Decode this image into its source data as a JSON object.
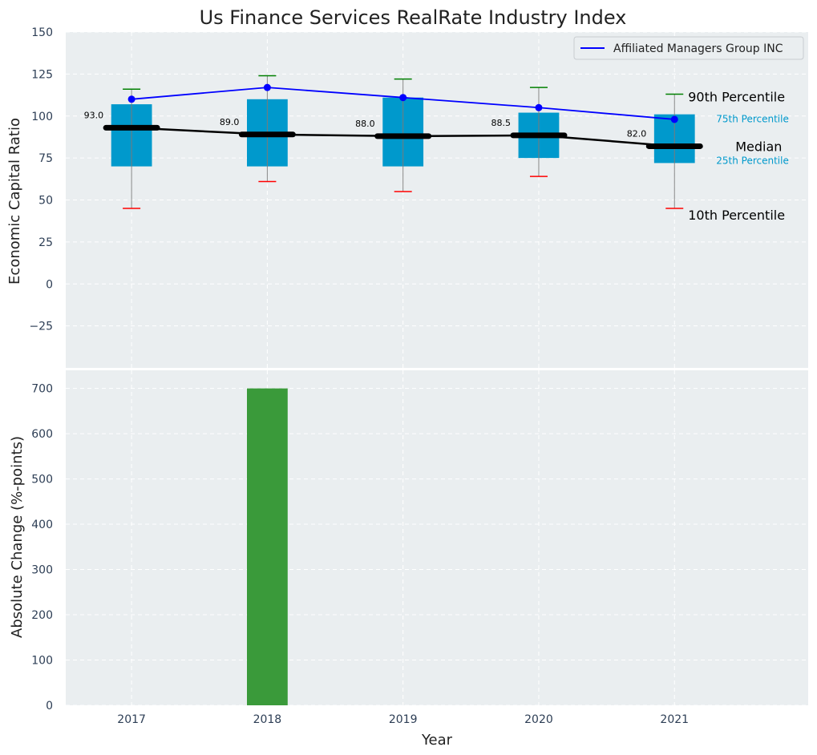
{
  "chart_data": [
    {
      "type": "box",
      "title": "Us Finance Services RealRate Industry Index",
      "ylabel": "Economic Capital Ratio",
      "ylim": [
        -50,
        150
      ],
      "yticks": [
        -25,
        0,
        25,
        50,
        75,
        100,
        125,
        150
      ],
      "ytick_labels": [
        "−25",
        "0",
        "25",
        "50",
        "75",
        "100",
        "125",
        "150"
      ],
      "grid": true,
      "legend_placement": "top-right",
      "categories": [
        "2017",
        "2018",
        "2019",
        "2020",
        "2021"
      ],
      "p10": [
        45,
        61,
        55,
        64,
        45
      ],
      "p25": [
        70,
        70,
        70,
        75,
        72
      ],
      "median": [
        93.0,
        89.0,
        88.0,
        88.5,
        82.0
      ],
      "median_labels": [
        "93.0",
        "89.0",
        "88.0",
        "88.5",
        "82.0"
      ],
      "p75": [
        107,
        110,
        111,
        102,
        101
      ],
      "p90": [
        116,
        124,
        122,
        117,
        113
      ],
      "series": [
        {
          "name": "Affiliated Managers Group INC",
          "values": [
            110,
            117,
            111,
            105,
            98
          ],
          "color": "#0000ff"
        }
      ],
      "annotations": {
        "p90": "90th Percentile",
        "p75": "75th Percentile",
        "median": "Median",
        "p25": "25th Percentile",
        "p10": "10th Percentile"
      },
      "colors": {
        "box": "#0099cc",
        "median": "#000000",
        "p90_cap": "#008000",
        "p10_cap": "#ff0000",
        "background": "#eaeef0"
      }
    },
    {
      "type": "bar",
      "ylabel": "Absolute Change (%-points)",
      "xlabel": "Year",
      "ylim": [
        0,
        740
      ],
      "yticks": [
        0,
        100,
        200,
        300,
        400,
        500,
        600,
        700
      ],
      "grid": true,
      "categories": [
        "2017",
        "2018",
        "2019",
        "2020",
        "2021"
      ],
      "values": [
        0,
        700,
        0,
        0,
        0
      ],
      "colors": {
        "bar": "#3a9a3a",
        "background": "#eaeef0"
      }
    }
  ]
}
